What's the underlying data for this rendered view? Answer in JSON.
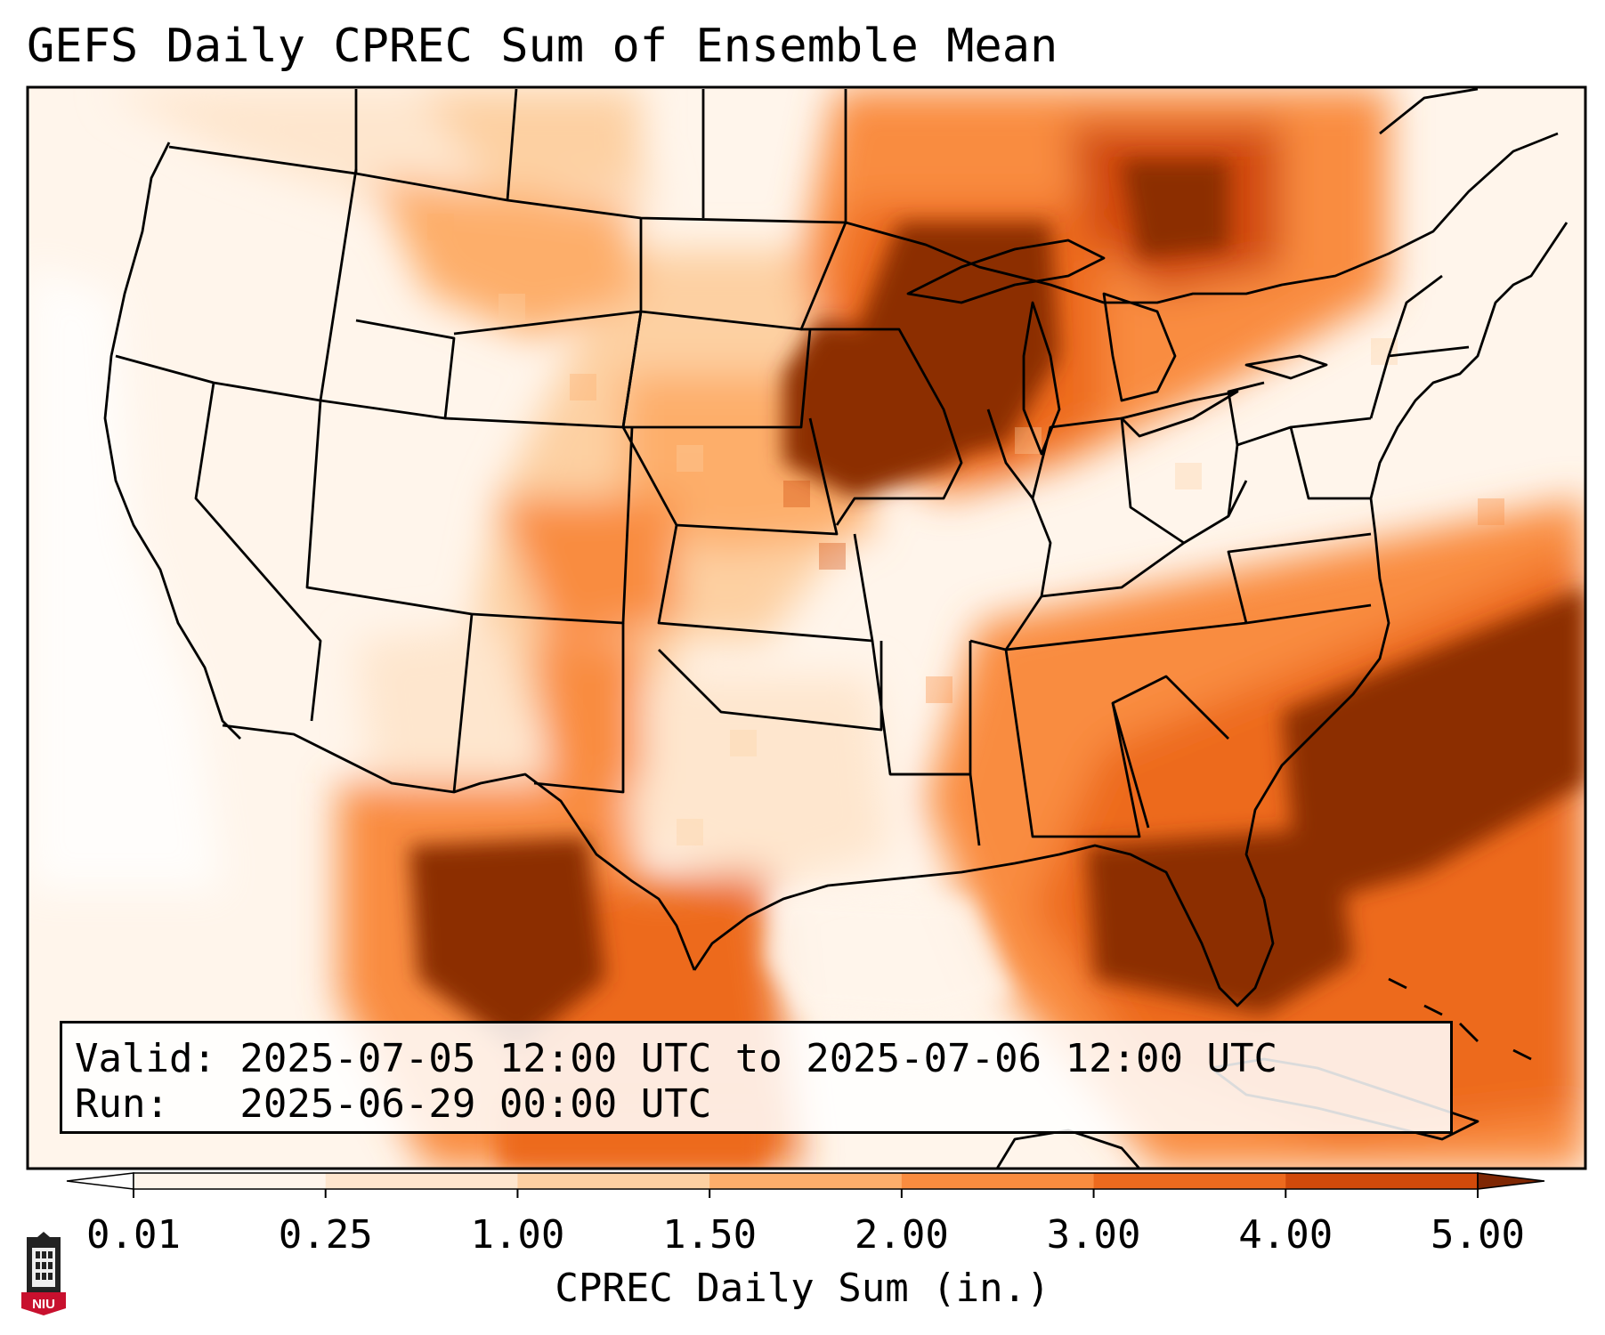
{
  "title": "GEFS Daily CPREC Sum of Ensemble Mean",
  "info": {
    "valid": "Valid: 2025-07-05 12:00 UTC to 2025-07-06 12:00 UTC",
    "run": "Run:   2025-06-29 00:00 UTC"
  },
  "colorbar": {
    "label": "CPREC Daily Sum (in.)",
    "ticks": [
      "0.01",
      "0.25",
      "1.00",
      "1.50",
      "2.00",
      "3.00",
      "4.00",
      "5.00"
    ],
    "colors": [
      "#fff5eb",
      "#fee6ce",
      "#fdd0a2",
      "#fdae6b",
      "#f98c3f",
      "#ed6a1e",
      "#d14a0b",
      "#8c2d04"
    ],
    "under_color": "#ffffff",
    "over_color": "#7f2704"
  },
  "logo": {
    "text": "NIU"
  }
}
